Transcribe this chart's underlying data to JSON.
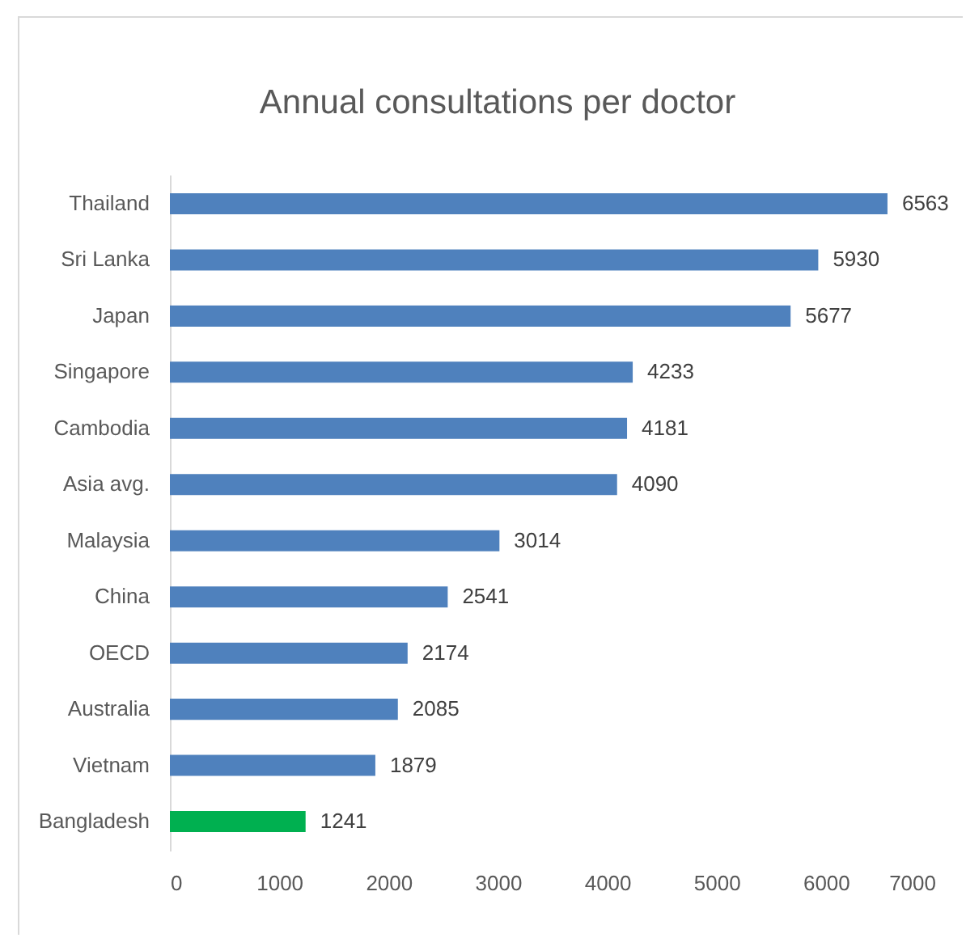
{
  "chart_data": {
    "type": "bar",
    "orientation": "horizontal",
    "title": "Annual consultations per doctor",
    "categories": [
      "Thailand",
      "Sri Lanka",
      "Japan",
      "Singapore",
      "Cambodia",
      "Asia avg.",
      "Malaysia",
      "China",
      "OECD",
      "Australia",
      "Vietnam",
      "Bangladesh"
    ],
    "values": [
      6563,
      5930,
      5677,
      4233,
      4181,
      4090,
      3014,
      2541,
      2174,
      2085,
      1879,
      1241
    ],
    "colors": [
      "#4f81bd",
      "#4f81bd",
      "#4f81bd",
      "#4f81bd",
      "#4f81bd",
      "#4f81bd",
      "#4f81bd",
      "#4f81bd",
      "#4f81bd",
      "#4f81bd",
      "#4f81bd",
      "#00b050"
    ],
    "data_labels": true,
    "xlim": [
      0,
      7000
    ],
    "xticks": [
      0,
      1000,
      2000,
      3000,
      4000,
      5000,
      6000,
      7000
    ],
    "grid": false
  }
}
